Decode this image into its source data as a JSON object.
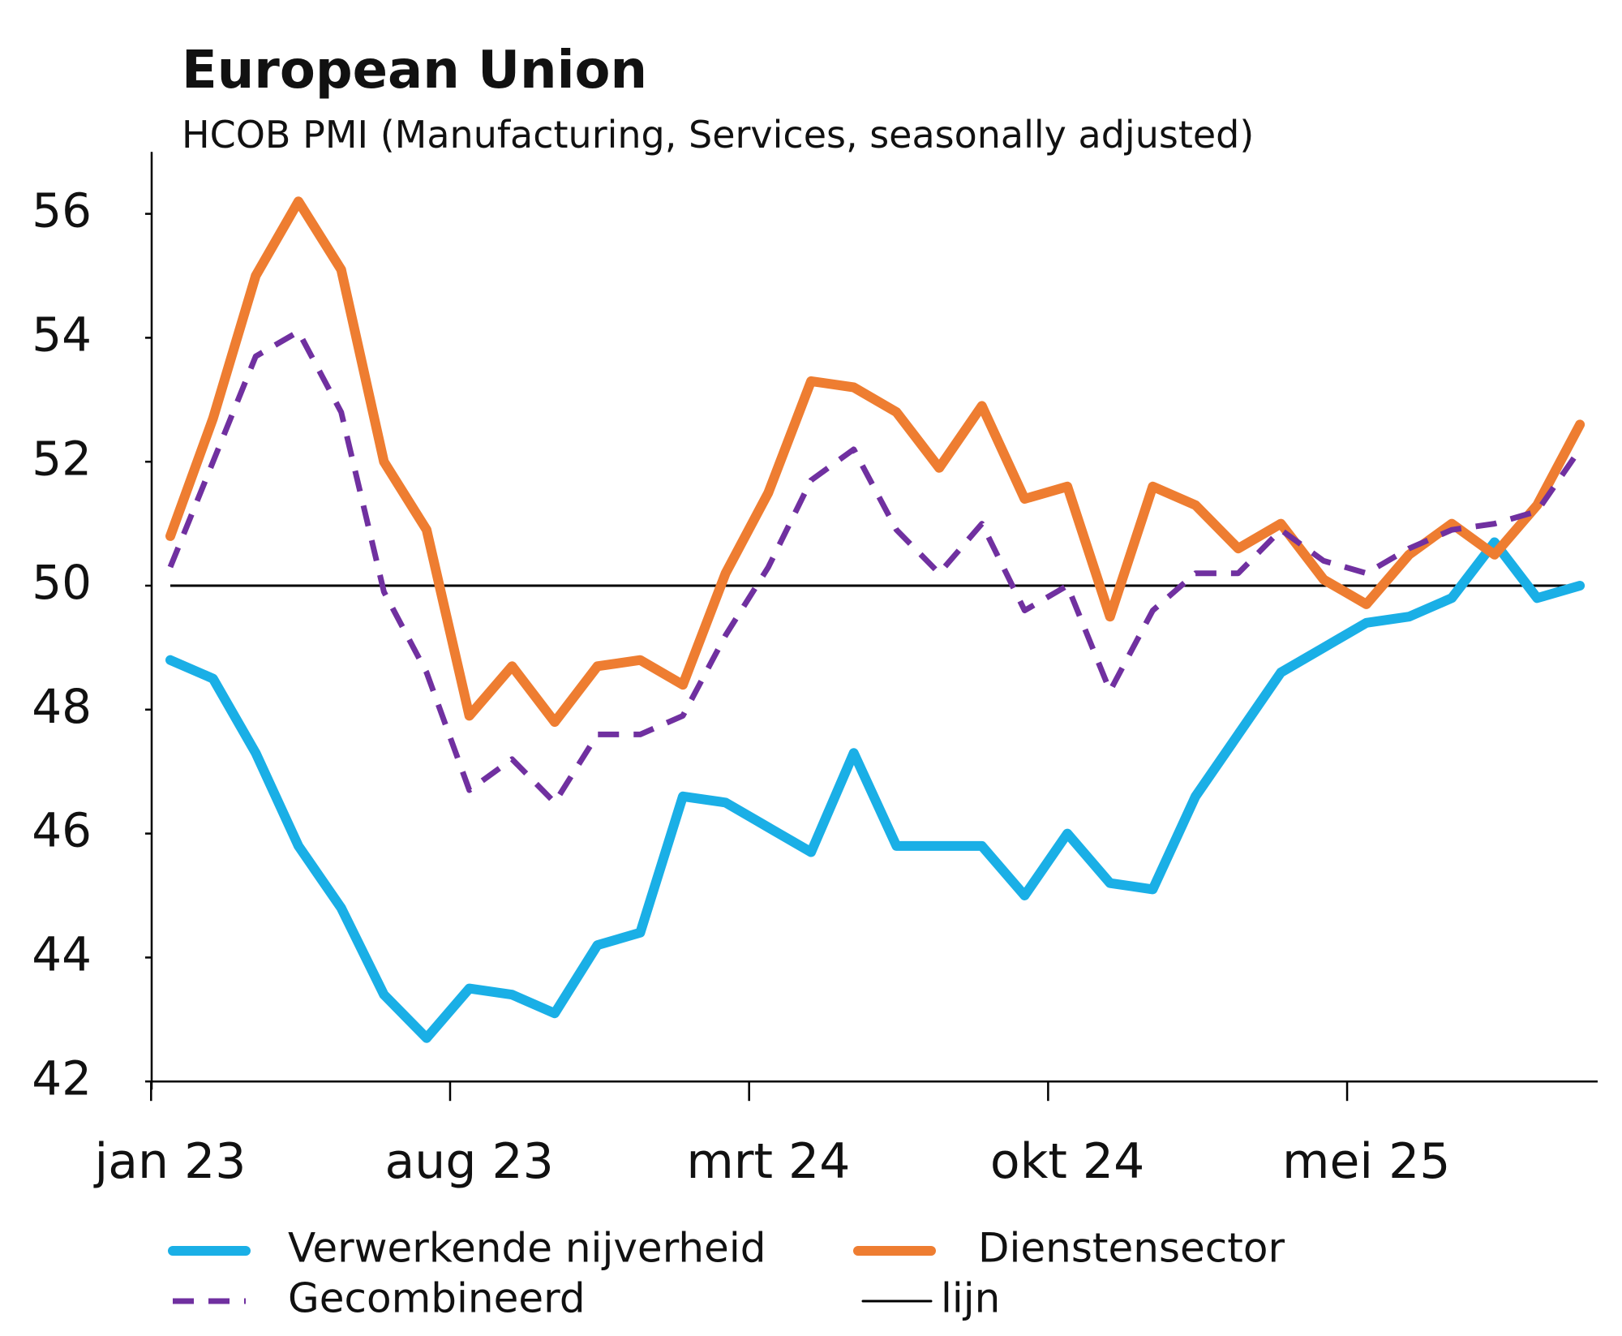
{
  "chart_data": {
    "type": "line",
    "title": "European Union",
    "subtitle": "HCOB PMI (Manufacturing, Services, seasonally adjusted)",
    "xlabel": "",
    "ylabel": "",
    "ylim": [
      42,
      57
    ],
    "yticks": [
      42,
      44,
      46,
      48,
      50,
      52,
      54,
      56
    ],
    "x_start": "jan 23",
    "x_end": "okt 25",
    "xtick_labels": [
      "jan 23",
      "aug 23",
      "mrt 24",
      "okt 24",
      "mei 25"
    ],
    "grid": false,
    "legend_placement": "bottom",
    "reference_line": {
      "name": "lijn",
      "value": 50,
      "color": "#000000"
    },
    "series": [
      {
        "name": "Verwerkende nijverheid",
        "color": "#1AAFE6",
        "style": "solid",
        "values": [
          48.8,
          48.5,
          47.3,
          45.8,
          44.8,
          43.4,
          42.7,
          43.5,
          43.4,
          43.1,
          44.2,
          44.4,
          46.6,
          46.5,
          46.1,
          45.7,
          47.3,
          45.8,
          45.8,
          45.8,
          45.0,
          46.0,
          45.2,
          45.1,
          46.6,
          47.6,
          48.6,
          49.0,
          49.4,
          49.5,
          49.8,
          50.7,
          49.8,
          50.0
        ]
      },
      {
        "name": "Dienstensector",
        "color": "#EE7D31",
        "style": "solid",
        "values": [
          50.8,
          52.7,
          55.0,
          56.2,
          55.1,
          52.0,
          50.9,
          47.9,
          48.7,
          47.8,
          48.7,
          48.8,
          48.4,
          50.2,
          51.5,
          53.3,
          53.2,
          52.8,
          51.9,
          52.9,
          51.4,
          51.6,
          49.5,
          51.6,
          51.3,
          50.6,
          51.0,
          50.1,
          49.7,
          50.5,
          51.0,
          50.5,
          51.3,
          52.6
        ]
      },
      {
        "name": "Gecombineerd",
        "color": "#7030A0",
        "style": "dashed",
        "values": [
          50.3,
          52.0,
          53.7,
          54.1,
          52.8,
          49.9,
          48.6,
          46.7,
          47.2,
          46.5,
          47.6,
          47.6,
          47.9,
          49.2,
          50.3,
          51.7,
          52.2,
          50.9,
          50.2,
          51.0,
          49.6,
          50.0,
          48.3,
          49.6,
          50.2,
          50.2,
          50.9,
          50.4,
          50.2,
          50.6,
          50.9,
          51.0,
          51.2,
          52.2
        ]
      }
    ]
  }
}
